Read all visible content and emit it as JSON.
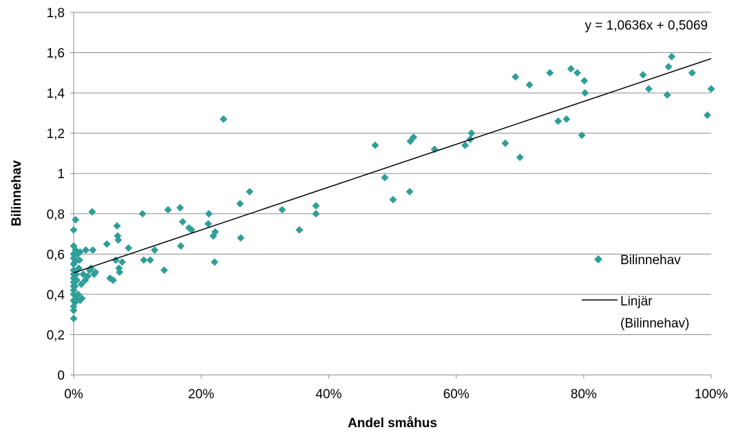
{
  "chart_data": {
    "type": "scatter",
    "xlabel": "Andel småhus",
    "ylabel": "Bilinnehav",
    "xlim": [
      0,
      1
    ],
    "ylim": [
      0,
      1.8
    ],
    "x_ticks": [
      "0%",
      "20%",
      "40%",
      "60%",
      "80%",
      "100%"
    ],
    "y_ticks": [
      "0",
      "0,2",
      "0,4",
      "0,6",
      "0,8",
      "1",
      "1,2",
      "1,4",
      "1,6",
      "1,8"
    ],
    "grid": "horizontal",
    "legend_position": "right",
    "marker_color": "#2E9E98",
    "line_color": "#000000",
    "series": [
      {
        "name": "Bilinnehav",
        "marker": "diamond",
        "points": [
          [
            0.0,
            0.28
          ],
          [
            0.0,
            0.32
          ],
          [
            0.0,
            0.34
          ],
          [
            0.0,
            0.37
          ],
          [
            0.0,
            0.4
          ],
          [
            0.0,
            0.42
          ],
          [
            0.0,
            0.44
          ],
          [
            0.0,
            0.46
          ],
          [
            0.0,
            0.48
          ],
          [
            0.0,
            0.5
          ],
          [
            0.0,
            0.52
          ],
          [
            0.0,
            0.55
          ],
          [
            0.0,
            0.58
          ],
          [
            0.0,
            0.6
          ],
          [
            0.0,
            0.64
          ],
          [
            0.0,
            0.72
          ],
          [
            0.002,
            0.36
          ],
          [
            0.002,
            0.44
          ],
          [
            0.002,
            0.56
          ],
          [
            0.003,
            0.62
          ],
          [
            0.003,
            0.77
          ],
          [
            0.004,
            0.38
          ],
          [
            0.004,
            0.5
          ],
          [
            0.005,
            0.47
          ],
          [
            0.006,
            0.6
          ],
          [
            0.007,
            0.4
          ],
          [
            0.008,
            0.53
          ],
          [
            0.009,
            0.57
          ],
          [
            0.01,
            0.37
          ],
          [
            0.01,
            0.61
          ],
          [
            0.012,
            0.45
          ],
          [
            0.013,
            0.38
          ],
          [
            0.015,
            0.5
          ],
          [
            0.018,
            0.47
          ],
          [
            0.019,
            0.62
          ],
          [
            0.022,
            0.49
          ],
          [
            0.025,
            0.52
          ],
          [
            0.027,
            0.53
          ],
          [
            0.029,
            0.81
          ],
          [
            0.03,
            0.62
          ],
          [
            0.032,
            0.5
          ],
          [
            0.034,
            0.51
          ],
          [
            0.052,
            0.65
          ],
          [
            0.057,
            0.48
          ],
          [
            0.062,
            0.47
          ],
          [
            0.066,
            0.57
          ],
          [
            0.068,
            0.74
          ],
          [
            0.069,
            0.69
          ],
          [
            0.07,
            0.67
          ],
          [
            0.071,
            0.53
          ],
          [
            0.072,
            0.51
          ],
          [
            0.076,
            0.56
          ],
          [
            0.086,
            0.63
          ],
          [
            0.108,
            0.8
          ],
          [
            0.11,
            0.57
          ],
          [
            0.12,
            0.57
          ],
          [
            0.127,
            0.62
          ],
          [
            0.142,
            0.52
          ],
          [
            0.148,
            0.82
          ],
          [
            0.167,
            0.83
          ],
          [
            0.168,
            0.64
          ],
          [
            0.171,
            0.76
          ],
          [
            0.181,
            0.73
          ],
          [
            0.185,
            0.72
          ],
          [
            0.211,
            0.75
          ],
          [
            0.212,
            0.8
          ],
          [
            0.219,
            0.69
          ],
          [
            0.221,
            0.56
          ],
          [
            0.222,
            0.71
          ],
          [
            0.235,
            1.27
          ],
          [
            0.261,
            0.85
          ],
          [
            0.262,
            0.68
          ],
          [
            0.276,
            0.91
          ],
          [
            0.327,
            0.82
          ],
          [
            0.354,
            0.72
          ],
          [
            0.38,
            0.84
          ],
          [
            0.38,
            0.8
          ],
          [
            0.473,
            1.14
          ],
          [
            0.488,
            0.98
          ],
          [
            0.501,
            0.87
          ],
          [
            0.527,
            0.91
          ],
          [
            0.528,
            1.16
          ],
          [
            0.533,
            1.18
          ],
          [
            0.566,
            1.12
          ],
          [
            0.614,
            1.14
          ],
          [
            0.622,
            1.17
          ],
          [
            0.624,
            1.2
          ],
          [
            0.677,
            1.15
          ],
          [
            0.693,
            1.48
          ],
          [
            0.7,
            1.08
          ],
          [
            0.715,
            1.44
          ],
          [
            0.747,
            1.5
          ],
          [
            0.76,
            1.26
          ],
          [
            0.773,
            1.27
          ],
          [
            0.78,
            1.52
          ],
          [
            0.79,
            1.5
          ],
          [
            0.797,
            1.19
          ],
          [
            0.801,
            1.46
          ],
          [
            0.802,
            1.4
          ],
          [
            0.893,
            1.49
          ],
          [
            0.902,
            1.42
          ],
          [
            0.931,
            1.39
          ],
          [
            0.933,
            1.53
          ],
          [
            0.938,
            1.58
          ],
          [
            0.97,
            1.5
          ],
          [
            0.994,
            1.29
          ],
          [
            1.0,
            1.42
          ]
        ]
      },
      {
        "name": "Linjär (Bilinnehav)",
        "type": "line",
        "slope": 1.0636,
        "intercept": 0.5069,
        "x_range": [
          0,
          1
        ]
      }
    ],
    "annotation": "y = 1,0636x + 0,5069",
    "legend": {
      "scatter_label": "Bilinnehav",
      "line_label_1": "Linjär",
      "line_label_2": "(Bilinnehav)"
    }
  }
}
